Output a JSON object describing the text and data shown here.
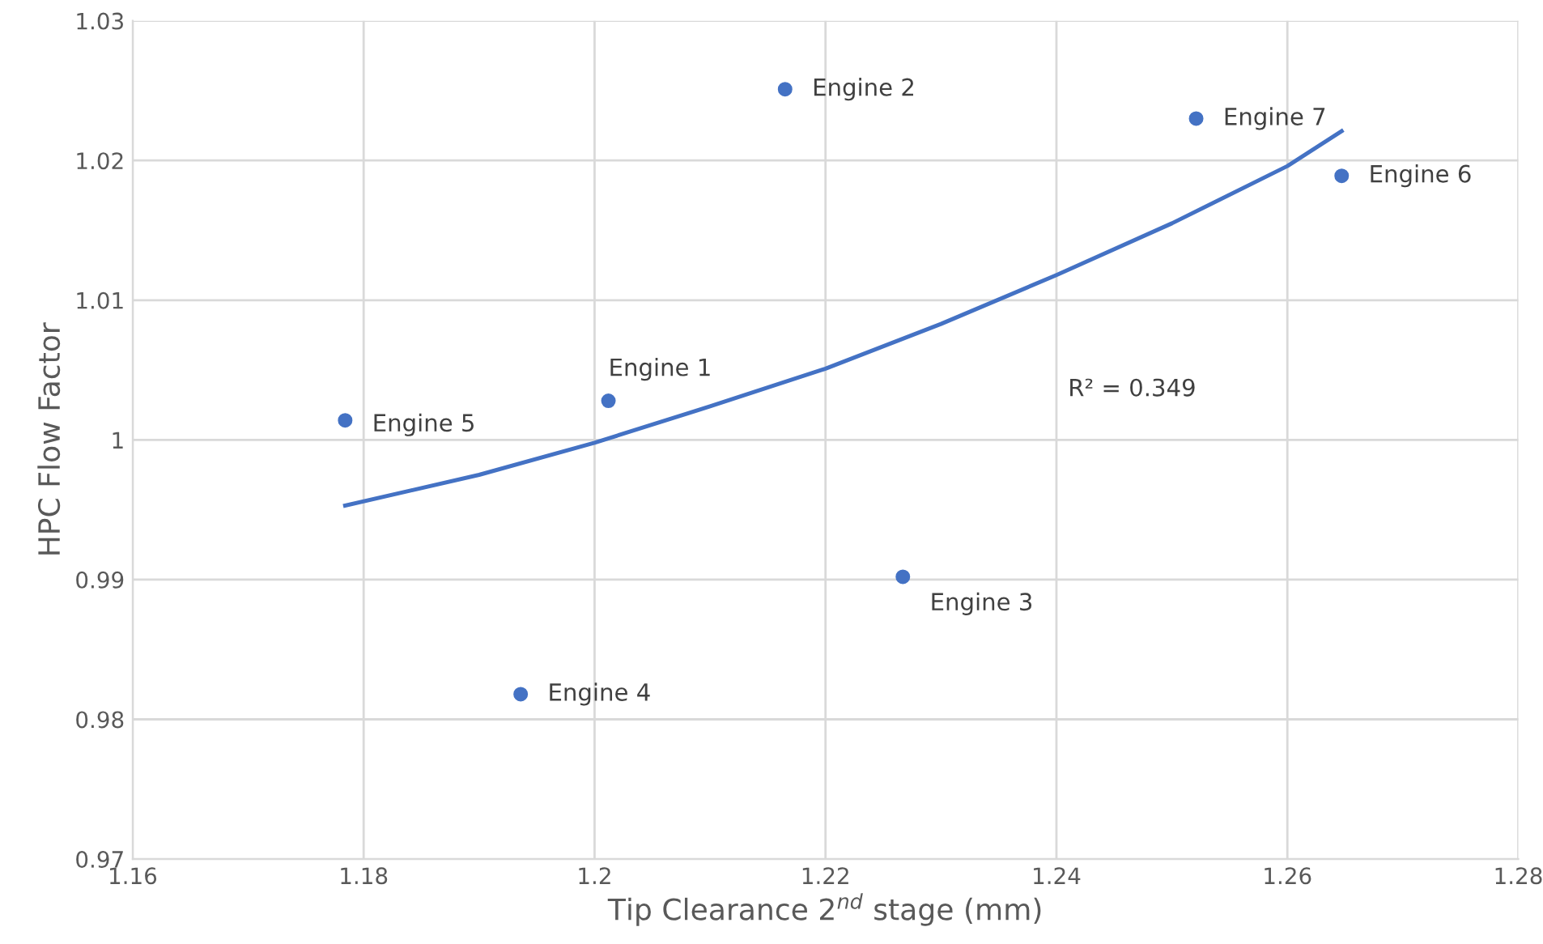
{
  "chart_data": {
    "type": "scatter",
    "xlabel": "Tip Clearance 2$^{nd}$ stage (mm)",
    "ylabel": "HPC Flow Factor",
    "xlim": [
      1.16,
      1.28
    ],
    "xticks": [
      {
        "value": 1.16,
        "label": "1.16"
      },
      {
        "value": 1.18,
        "label": "1.18"
      },
      {
        "value": 1.2,
        "label": "1.2"
      },
      {
        "value": 1.22,
        "label": "1.22"
      },
      {
        "value": 1.24,
        "label": "1.24"
      },
      {
        "value": 1.26,
        "label": "1.26"
      },
      {
        "value": 1.28,
        "label": "1.28"
      }
    ],
    "ylim": [
      0.97,
      1.03
    ],
    "yticks": [
      {
        "value": 0.97,
        "label": "0.97"
      },
      {
        "value": 0.98,
        "label": "0.98"
      },
      {
        "value": 0.99,
        "label": "0.99"
      },
      {
        "value": 1.0,
        "label": "1"
      },
      {
        "value": 1.01,
        "label": "1.01"
      },
      {
        "value": 1.02,
        "label": "1.02"
      },
      {
        "value": 1.03,
        "label": "1.03"
      }
    ],
    "grid": true,
    "series": [
      {
        "marker": "circle",
        "color": "#4472c4",
        "x": [
          1.2012,
          1.2165,
          1.2267,
          1.1936,
          1.1784,
          1.2647,
          1.2521
        ],
        "values": [
          1.0028,
          1.0251,
          0.9902,
          0.9818,
          1.0014,
          1.0189,
          1.023
        ]
      },
      {
        "type": "line",
        "color": "#4472c4",
        "x": [
          1.1784,
          1.19,
          1.2,
          1.21,
          1.22,
          1.23,
          1.24,
          1.25,
          1.26,
          1.2647
        ],
        "values": [
          0.9953,
          0.9975,
          0.9998,
          1.0024,
          1.0051,
          1.0083,
          1.0118,
          1.0155,
          1.0196,
          1.0221
        ]
      }
    ],
    "annotations": [
      {
        "text": "Engine 1",
        "x": 1.2012,
        "y": 1.0028
      },
      {
        "text": "Engine 2",
        "x": 1.2165,
        "y": 1.0251
      },
      {
        "text": "Engine 3",
        "x": 1.2267,
        "y": 0.9902
      },
      {
        "text": "Engine 4",
        "x": 1.1936,
        "y": 0.9818
      },
      {
        "text": "Engine 5",
        "x": 1.1784,
        "y": 1.0014
      },
      {
        "text": "Engine 6",
        "x": 1.2647,
        "y": 1.0189
      },
      {
        "text": "Engine 7",
        "x": 1.2521,
        "y": 1.023
      },
      "R² = 0.349"
    ]
  }
}
